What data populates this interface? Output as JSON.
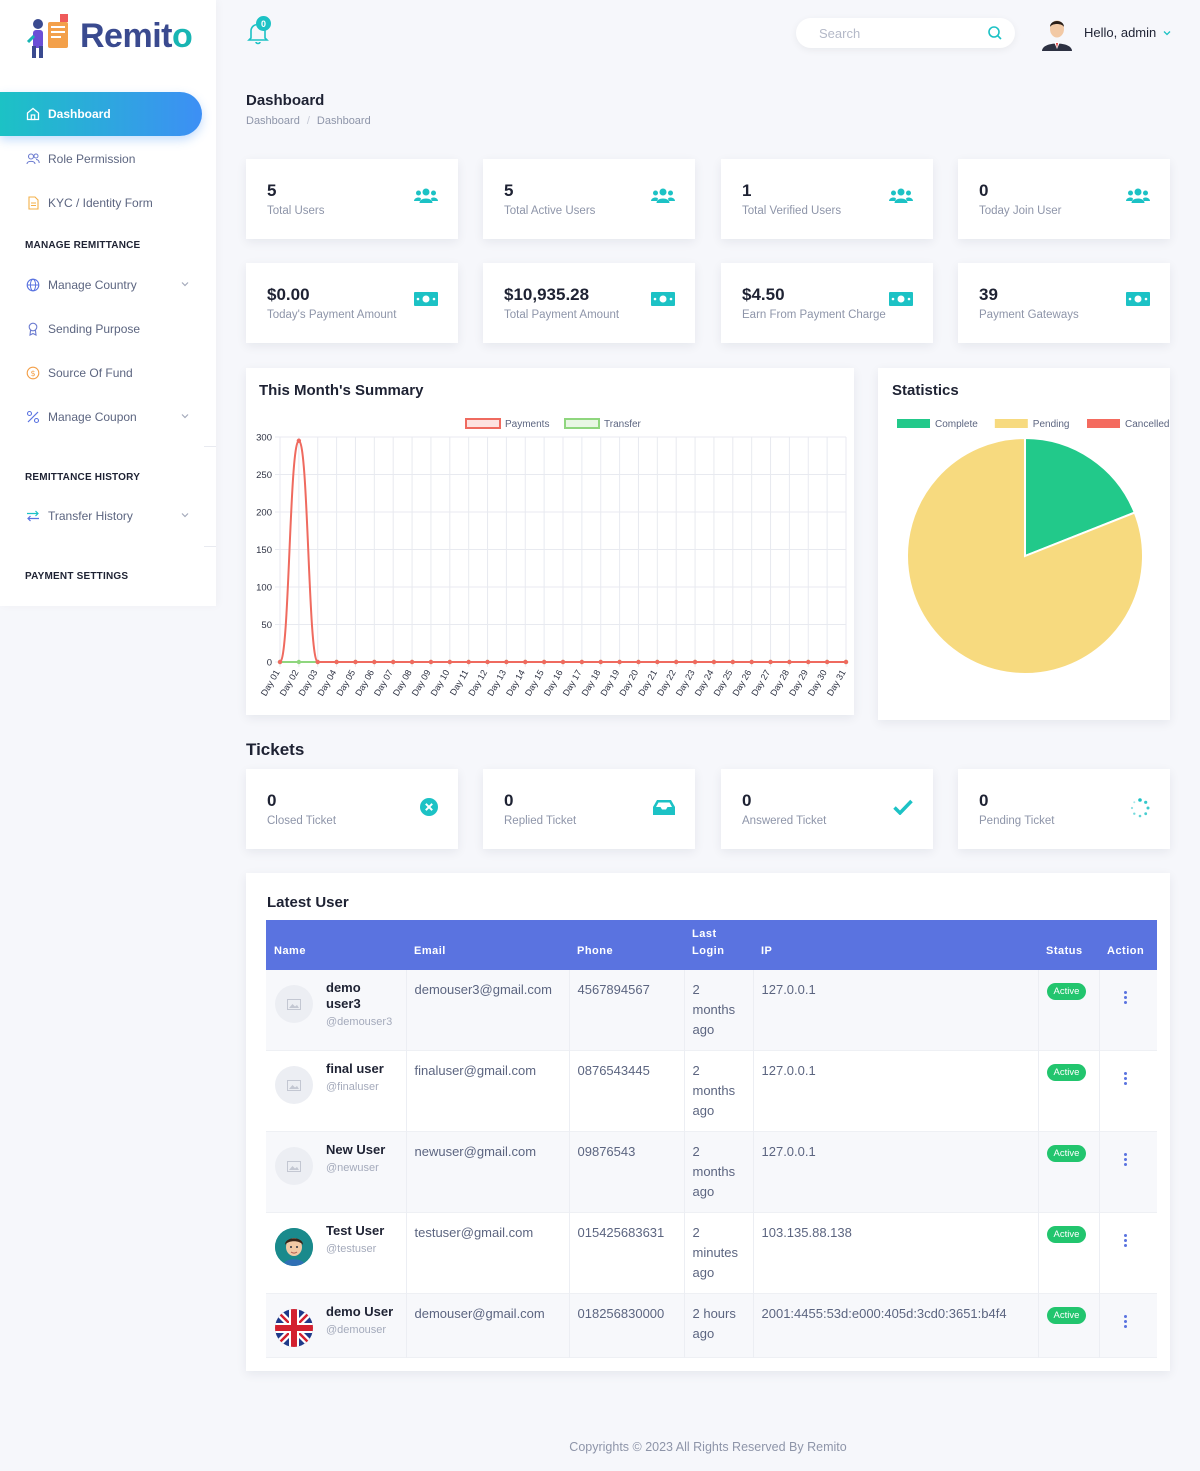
{
  "brand": {
    "name_main": "Remit",
    "name_accent": "o"
  },
  "sidebar": {
    "active": "Dashboard",
    "items": [
      {
        "label": "Role Permission",
        "icon": "users-icon"
      },
      {
        "label": "KYC / Identity Form",
        "icon": "document-icon"
      }
    ],
    "section_remittance": "MANAGE REMITTANCE",
    "remittance_items": [
      {
        "label": "Manage Country",
        "icon": "globe-icon",
        "expandable": true
      },
      {
        "label": "Sending Purpose",
        "icon": "award-icon",
        "expandable": false
      },
      {
        "label": "Source Of Fund",
        "icon": "coin-icon",
        "expandable": false
      },
      {
        "label": "Manage Coupon",
        "icon": "percent-icon",
        "expandable": true
      }
    ],
    "section_history": "REMITTANCE HISTORY",
    "history_items": [
      {
        "label": "Transfer History",
        "icon": "transfer-icon",
        "expandable": true
      }
    ],
    "section_payment": "PAYMENT SETTINGS"
  },
  "topbar": {
    "notification_count": "0",
    "search_placeholder": "Search",
    "greeting": "Hello, admin"
  },
  "page": {
    "title": "Dashboard",
    "breadcrumb": [
      "Dashboard",
      "Dashboard"
    ]
  },
  "user_stats": [
    {
      "value": "5",
      "label": "Total Users"
    },
    {
      "value": "5",
      "label": "Total Active Users"
    },
    {
      "value": "1",
      "label": "Total Verified Users"
    },
    {
      "value": "0",
      "label": "Today Join User"
    }
  ],
  "payment_stats": [
    {
      "value": "$0.00",
      "label": "Today's Payment Amount"
    },
    {
      "value": "$10,935.28",
      "label": "Total Payment Amount"
    },
    {
      "value": "$4.50",
      "label": "Earn From Payment Charge"
    },
    {
      "value": "39",
      "label": "Payment Gateways"
    }
  ],
  "summary_title": "This Month's Summary",
  "statistics_title": "Statistics",
  "chart_data": [
    {
      "type": "line",
      "title": "This Month's Summary",
      "x": [
        "Day 01",
        "Day 02",
        "Day 03",
        "Day 04",
        "Day 05",
        "Day 06",
        "Day 07",
        "Day 08",
        "Day 09",
        "Day 10",
        "Day 11",
        "Day 12",
        "Day 13",
        "Day 14",
        "Day 15",
        "Day 16",
        "Day 17",
        "Day 18",
        "Day 19",
        "Day 20",
        "Day 21",
        "Day 22",
        "Day 23",
        "Day 24",
        "Day 25",
        "Day 26",
        "Day 27",
        "Day 28",
        "Day 29",
        "Day 30",
        "Day 31"
      ],
      "series": [
        {
          "name": "Payments",
          "color": "#ef6a5f",
          "values": [
            0,
            295,
            0,
            0,
            0,
            0,
            0,
            0,
            0,
            0,
            0,
            0,
            0,
            0,
            0,
            0,
            0,
            0,
            0,
            0,
            0,
            0,
            0,
            0,
            0,
            0,
            0,
            0,
            0,
            0,
            0
          ]
        },
        {
          "name": "Transfer",
          "color": "#8fd67e",
          "values": [
            0,
            0,
            0,
            0,
            0,
            0,
            0,
            0,
            0,
            0,
            0,
            0,
            0,
            0,
            0,
            0,
            0,
            0,
            0,
            0,
            0,
            0,
            0,
            0,
            0,
            0,
            0,
            0,
            0,
            0,
            0
          ]
        }
      ],
      "yticks": [
        0,
        50,
        100,
        150,
        200,
        250,
        300
      ],
      "ylim": [
        0,
        300
      ],
      "grid": true,
      "legend": "top"
    },
    {
      "type": "pie",
      "title": "Statistics",
      "labels": [
        "Complete",
        "Pending",
        "Cancelled"
      ],
      "values": [
        19,
        81,
        0
      ],
      "colors": [
        "#22c98a",
        "#f7da7f",
        "#f46b5f"
      ],
      "legend": "top"
    }
  ],
  "tickets_title": "Tickets",
  "tickets": [
    {
      "value": "0",
      "label": "Closed Ticket",
      "icon": "close-circle-icon"
    },
    {
      "value": "0",
      "label": "Replied Ticket",
      "icon": "inbox-icon"
    },
    {
      "value": "0",
      "label": "Answered Ticket",
      "icon": "check-icon"
    },
    {
      "value": "0",
      "label": "Pending Ticket",
      "icon": "spinner-icon"
    }
  ],
  "latest_user": {
    "title": "Latest User",
    "columns": {
      "name": "Name",
      "email": "Email",
      "phone": "Phone",
      "last_login_1": "Last",
      "last_login_2": "Login",
      "ip": "IP",
      "status": "Status",
      "action": "Action"
    },
    "rows": [
      {
        "name": "demo user3",
        "handle": "@demouser3",
        "email": "demouser3@gmail.com",
        "phone": "4567894567",
        "last_login": "2 months ago",
        "ip": "127.0.0.1",
        "status": "Active",
        "avatar": "placeholder-image-icon"
      },
      {
        "name": "final user",
        "handle": "@finaluser",
        "email": "finaluser@gmail.com",
        "phone": "0876543445",
        "last_login": "2 months ago",
        "ip": "127.0.0.1",
        "status": "Active",
        "avatar": "placeholder-image-icon"
      },
      {
        "name": "New User",
        "handle": "@newuser",
        "email": "newuser@gmail.com",
        "phone": "09876543",
        "last_login": "2 months ago",
        "ip": "127.0.0.1",
        "status": "Active",
        "avatar": "placeholder-image-icon"
      },
      {
        "name": "Test User",
        "handle": "@testuser",
        "email": "testuser@gmail.com",
        "phone": "015425683631",
        "last_login": "2 minutes ago",
        "ip": "103.135.88.138",
        "status": "Active",
        "avatar": "cartoon-avatar-icon"
      },
      {
        "name": "demo User",
        "handle": "@demouser",
        "email": "demouser@gmail.com",
        "phone": "018256830000",
        "last_login": "2 hours ago",
        "ip": "2001:4455:53d:e000:405d:3cd0:3651:b4f4",
        "status": "Active",
        "avatar": "uk-flag-icon"
      }
    ]
  },
  "footer": "Copyrights © 2023 All Rights Reserved By Remito",
  "colors": {
    "accent": "#1cc2c5",
    "primary": "#5a73e0",
    "success": "#22c56e"
  }
}
